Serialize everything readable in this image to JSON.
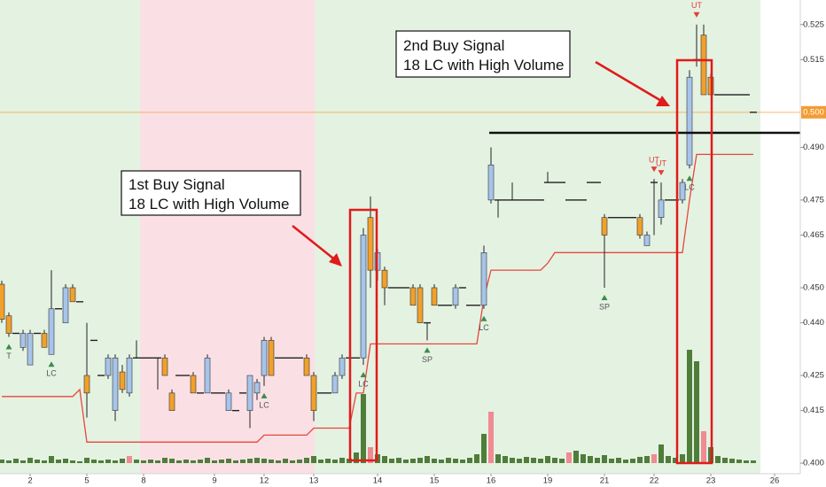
{
  "chart_data": {
    "type": "candlestick",
    "up_color": "#a7c4ea",
    "down_color": "#f0a02c",
    "wick_color": "#222222",
    "ylim": [
      0.397,
      0.532
    ],
    "yticks": [
      {
        "value": 0.4,
        "label": "0.400"
      },
      0.415,
      0.425,
      {
        "value": 0.44,
        "label": "0.440"
      },
      {
        "value": 0.45,
        "label": "0.450"
      },
      0.465,
      0.475,
      {
        "value": 0.49,
        "label": "0.490"
      },
      0.515,
      0.525
    ],
    "last_price": {
      "value": 0.5,
      "label": "0.500",
      "color": "#f39c34"
    },
    "categories": [
      null,
      null,
      null,
      null,
      "2",
      null,
      null,
      null,
      null,
      null,
      null,
      null,
      "5",
      null,
      null,
      null,
      null,
      null,
      null,
      null,
      "8",
      null,
      null,
      null,
      null,
      null,
      null,
      null,
      null,
      null,
      "9",
      null,
      null,
      null,
      null,
      null,
      null,
      "12",
      null,
      null,
      null,
      null,
      null,
      null,
      "13",
      null,
      null,
      null,
      null,
      null,
      null,
      null,
      null,
      "14",
      null,
      null,
      null,
      null,
      null,
      null,
      null,
      "15",
      null,
      null,
      null,
      null,
      null,
      null,
      null,
      "16",
      null,
      null,
      null,
      null,
      null,
      null,
      null,
      "19",
      null,
      null,
      null,
      null,
      null,
      null,
      null,
      "21",
      null,
      null,
      null,
      null,
      null,
      null,
      "22",
      null,
      null,
      null,
      null,
      null,
      null,
      null,
      "23",
      null,
      null,
      null,
      null,
      null,
      null,
      null,
      null,
      "26"
    ],
    "ohlc": [
      [
        0.451,
        0.452,
        0.44,
        0.441
      ],
      [
        0.442,
        0.443,
        0.436,
        0.437
      ],
      [
        0.437,
        0.437,
        0.437,
        0.437
      ],
      [
        0.433,
        0.438,
        0.432,
        0.437
      ],
      [
        0.428,
        0.438,
        0.428,
        0.437
      ],
      [
        0.437,
        0.437,
        0.437,
        0.437
      ],
      [
        0.437,
        0.438,
        0.433,
        0.433
      ],
      [
        0.431,
        0.455,
        0.431,
        0.444
      ],
      [
        0.444,
        0.444,
        0.444,
        0.444
      ],
      [
        0.44,
        0.451,
        0.44,
        0.45
      ],
      [
        0.45,
        0.451,
        0.446,
        0.446
      ],
      [
        0.446,
        0.446,
        0.446,
        0.446
      ],
      [
        0.425,
        0.44,
        0.413,
        0.42
      ],
      [
        0.435,
        0.435,
        0.435,
        0.435
      ],
      [
        0.425,
        0.425,
        0.425,
        0.425
      ],
      [
        0.425,
        0.431,
        0.424,
        0.43
      ],
      [
        0.415,
        0.431,
        0.412,
        0.43
      ],
      [
        0.426,
        0.428,
        0.42,
        0.421
      ],
      [
        0.42,
        0.431,
        0.419,
        0.43
      ],
      [
        0.43,
        0.435,
        0.43,
        0.43
      ],
      [
        0.43,
        0.43,
        0.43,
        0.43
      ],
      [
        0.43,
        0.43,
        0.43,
        0.43
      ],
      [
        0.43,
        0.43,
        0.421,
        0.43
      ],
      [
        0.43,
        0.431,
        0.425,
        0.425
      ],
      [
        0.42,
        0.421,
        0.415,
        0.415
      ],
      [
        0.425,
        0.425,
        0.425,
        0.425
      ],
      [
        0.425,
        0.425,
        0.425,
        0.425
      ],
      [
        0.425,
        0.426,
        0.42,
        0.42
      ],
      [
        0.42,
        0.42,
        0.42,
        0.42
      ],
      [
        0.42,
        0.431,
        0.42,
        0.43
      ],
      [
        0.42,
        0.42,
        0.42,
        0.42
      ],
      [
        0.42,
        0.42,
        0.42,
        0.42
      ],
      [
        0.415,
        0.421,
        0.415,
        0.42
      ],
      [
        0.415,
        0.415,
        0.415,
        0.415
      ],
      [
        0.42,
        0.42,
        0.42,
        0.42
      ],
      [
        0.415,
        0.425,
        0.41,
        0.425
      ],
      [
        0.42,
        0.424,
        0.418,
        0.423
      ],
      [
        0.425,
        0.436,
        0.422,
        0.435
      ],
      [
        0.435,
        0.436,
        0.425,
        0.425
      ],
      [
        0.43,
        0.43,
        0.43,
        0.43
      ],
      [
        0.43,
        0.43,
        0.43,
        0.43
      ],
      [
        0.43,
        0.43,
        0.43,
        0.43
      ],
      [
        0.43,
        0.43,
        0.43,
        0.43
      ],
      [
        0.43,
        0.431,
        0.425,
        0.425
      ],
      [
        0.425,
        0.426,
        0.412,
        0.415
      ],
      [
        0.42,
        0.42,
        0.42,
        0.42
      ],
      [
        0.42,
        0.42,
        0.42,
        0.42
      ],
      [
        0.42,
        0.426,
        0.42,
        0.425
      ],
      [
        0.425,
        0.431,
        0.424,
        0.43
      ],
      [
        0.43,
        0.43,
        0.43,
        0.43
      ],
      [
        0.43,
        0.43,
        0.43,
        0.43
      ],
      [
        0.43,
        0.467,
        0.428,
        0.465
      ],
      [
        0.47,
        0.476,
        0.45,
        0.455
      ],
      [
        0.455,
        0.461,
        0.452,
        0.46
      ],
      [
        0.455,
        0.456,
        0.445,
        0.45
      ],
      [
        0.45,
        0.45,
        0.45,
        0.45
      ],
      [
        0.45,
        0.45,
        0.45,
        0.45
      ],
      [
        0.45,
        0.45,
        0.45,
        0.45
      ],
      [
        0.45,
        0.451,
        0.445,
        0.445
      ],
      [
        0.45,
        0.451,
        0.44,
        0.44
      ],
      [
        0.44,
        0.44,
        0.435,
        0.44
      ],
      [
        0.45,
        0.451,
        0.445,
        0.445
      ],
      [
        0.445,
        0.445,
        0.445,
        0.445
      ],
      [
        0.445,
        0.445,
        0.445,
        0.445
      ],
      [
        0.445,
        0.451,
        0.444,
        0.45
      ],
      [
        0.45,
        0.45,
        0.45,
        0.45
      ],
      [
        0.445,
        0.445,
        0.445,
        0.445
      ],
      [
        0.445,
        0.445,
        0.445,
        0.445
      ],
      [
        0.445,
        0.462,
        0.444,
        0.46
      ],
      [
        0.475,
        0.49,
        0.474,
        0.485
      ],
      [
        0.475,
        0.475,
        0.47,
        0.475
      ],
      [
        0.475,
        0.475,
        0.475,
        0.475
      ],
      [
        0.475,
        0.48,
        0.475,
        0.475
      ],
      [
        0.475,
        0.475,
        0.475,
        0.475
      ],
      [
        0.475,
        0.475,
        0.475,
        0.475
      ],
      [
        0.475,
        0.475,
        0.475,
        0.475
      ],
      [
        0.475,
        0.475,
        0.475,
        0.475
      ],
      [
        0.48,
        0.483,
        0.48,
        0.48
      ],
      [
        0.48,
        0.48,
        0.48,
        0.48
      ],
      [
        0.48,
        0.48,
        0.48,
        0.48
      ],
      [
        0.475,
        0.475,
        0.475,
        0.475
      ],
      [
        0.475,
        0.475,
        0.475,
        0.475
      ],
      [
        0.475,
        0.475,
        0.475,
        0.475
      ],
      [
        0.48,
        0.48,
        0.48,
        0.48
      ],
      [
        0.48,
        0.48,
        0.48,
        0.48
      ],
      [
        0.47,
        0.471,
        0.45,
        0.465
      ],
      [
        0.47,
        0.47,
        0.47,
        0.47
      ],
      [
        0.47,
        0.47,
        0.47,
        0.47
      ],
      [
        0.47,
        0.47,
        0.47,
        0.47
      ],
      [
        0.47,
        0.47,
        0.47,
        0.47
      ],
      [
        0.47,
        0.471,
        0.464,
        0.465
      ],
      [
        0.462,
        0.466,
        0.462,
        0.465
      ],
      [
        0.48,
        0.481,
        0.465,
        0.48
      ],
      [
        0.47,
        0.48,
        0.468,
        0.475
      ],
      [
        0.475,
        0.475,
        0.475,
        0.475
      ],
      [
        0.475,
        0.475,
        0.475,
        0.475
      ],
      [
        0.475,
        0.481,
        0.474,
        0.48
      ],
      [
        0.485,
        0.512,
        0.484,
        0.51
      ],
      [
        0.515,
        0.525,
        0.513,
        0.515
      ],
      [
        0.522,
        0.525,
        0.505,
        0.505
      ],
      [
        0.51,
        0.511,
        0.505,
        0.505
      ],
      [
        0.505,
        0.505,
        0.505,
        0.505
      ],
      [
        0.505,
        0.505,
        0.505,
        0.505
      ],
      [
        0.505,
        0.505,
        0.505,
        0.505
      ],
      [
        0.505,
        0.505,
        0.505,
        0.505
      ],
      [
        0.505,
        0.505,
        0.505,
        0.505
      ],
      [
        0.5,
        0.5,
        0.5,
        0.5
      ],
      null,
      null,
      null
    ],
    "volume": [
      4,
      3,
      5,
      3,
      6,
      4,
      3,
      8,
      4,
      5,
      3,
      2,
      6,
      4,
      3,
      4,
      3,
      5,
      8,
      4,
      3,
      4,
      3,
      6,
      5,
      3,
      4,
      3,
      4,
      6,
      3,
      4,
      5,
      3,
      4,
      5,
      6,
      5,
      4,
      3,
      5,
      3,
      4,
      6,
      8,
      4,
      5,
      4,
      6,
      5,
      12,
      78,
      18,
      10,
      8,
      5,
      6,
      4,
      5,
      6,
      8,
      5,
      4,
      6,
      5,
      4,
      6,
      10,
      33,
      58,
      10,
      8,
      6,
      5,
      7,
      6,
      5,
      8,
      6,
      5,
      12,
      14,
      10,
      8,
      6,
      9,
      5,
      6,
      4,
      5,
      7,
      8,
      10,
      21,
      8,
      6,
      10,
      128,
      115,
      36,
      18,
      8,
      6,
      5,
      4,
      3,
      3,
      null,
      null,
      null
    ],
    "volume_colors": [
      "#4f7d3a",
      "#4f7d3a",
      "#4f7d3a",
      "#4f7d3a",
      "#4f7d3a",
      "#4f7d3a",
      "#4f7d3a",
      "#4f7d3a",
      "#4f7d3a",
      "#4f7d3a",
      "#4f7d3a",
      "#4f7d3a",
      "#4f7d3a",
      "#4f7d3a",
      "#4f7d3a",
      "#4f7d3a",
      "#4f7d3a",
      "#4f7d3a",
      "#f08a93",
      "#4f7d3a",
      "#4f7d3a",
      "#4f7d3a",
      "#4f7d3a",
      "#4f7d3a",
      "#4f7d3a",
      "#4f7d3a",
      "#4f7d3a",
      "#4f7d3a",
      "#4f7d3a",
      "#4f7d3a",
      "#4f7d3a",
      "#4f7d3a",
      "#4f7d3a",
      "#4f7d3a",
      "#4f7d3a",
      "#4f7d3a",
      "#4f7d3a",
      "#4f7d3a",
      "#4f7d3a",
      "#4f7d3a",
      "#4f7d3a",
      "#4f7d3a",
      "#4f7d3a",
      "#4f7d3a",
      "#4f7d3a",
      "#4f7d3a",
      "#4f7d3a",
      "#4f7d3a",
      "#4f7d3a",
      "#4f7d3a",
      "#4f7d3a",
      "#4f7d3a",
      "#f08a93",
      "#4f7d3a",
      "#4f7d3a",
      "#4f7d3a",
      "#4f7d3a",
      "#4f7d3a",
      "#4f7d3a",
      "#4f7d3a",
      "#4f7d3a",
      "#4f7d3a",
      "#4f7d3a",
      "#4f7d3a",
      "#4f7d3a",
      "#4f7d3a",
      "#4f7d3a",
      "#4f7d3a",
      "#4f7d3a",
      "#f08a93",
      "#4f7d3a",
      "#4f7d3a",
      "#4f7d3a",
      "#4f7d3a",
      "#4f7d3a",
      "#4f7d3a",
      "#4f7d3a",
      "#4f7d3a",
      "#4f7d3a",
      "#4f7d3a",
      "#f08a93",
      "#4f7d3a",
      "#4f7d3a",
      "#4f7d3a",
      "#4f7d3a",
      "#4f7d3a",
      "#4f7d3a",
      "#4f7d3a",
      "#4f7d3a",
      "#4f7d3a",
      "#4f7d3a",
      "#4f7d3a",
      "#f08a93",
      "#4f7d3a",
      "#4f7d3a",
      "#4f7d3a",
      "#4f7d3a",
      "#4f7d3a",
      "#4f7d3a",
      "#f08a93",
      "#4f7d3a",
      "#4f7d3a",
      "#4f7d3a",
      "#4f7d3a",
      "#4f7d3a",
      "#4f7d3a",
      "#4f7d3a",
      "#4f7d3a",
      "#4f7d3a",
      "#4f7d3a"
    ],
    "stop_line": {
      "color": "#e8463c",
      "values": [
        0.419,
        0.419,
        0.419,
        0.419,
        0.419,
        0.419,
        0.419,
        0.419,
        0.419,
        0.419,
        0.419,
        0.421,
        0.406,
        0.406,
        0.406,
        0.406,
        0.406,
        0.406,
        0.406,
        0.406,
        0.406,
        0.406,
        0.406,
        0.406,
        0.406,
        0.406,
        0.406,
        0.406,
        0.406,
        0.406,
        0.406,
        0.406,
        0.406,
        0.406,
        0.406,
        0.406,
        0.406,
        0.408,
        0.408,
        0.408,
        0.408,
        0.408,
        0.408,
        0.408,
        0.41,
        0.41,
        0.41,
        0.41,
        0.41,
        0.41,
        0.42,
        0.42,
        0.434,
        0.434,
        0.434,
        0.434,
        0.434,
        0.434,
        0.434,
        0.434,
        0.434,
        0.434,
        0.434,
        0.434,
        0.434,
        0.434,
        0.434,
        0.434,
        0.447,
        0.455,
        0.455,
        0.455,
        0.455,
        0.455,
        0.455,
        0.455,
        0.455,
        0.457,
        0.46,
        0.46,
        0.46,
        0.46,
        0.46,
        0.46,
        0.46,
        0.46,
        0.46,
        0.46,
        0.46,
        0.46,
        0.46,
        0.46,
        0.46,
        0.46,
        0.46,
        0.46,
        0.46,
        0.475,
        0.488,
        0.488,
        0.488,
        0.488,
        0.488,
        0.488,
        0.488,
        0.488,
        0.488,
        null,
        null,
        null
      ]
    },
    "markers": [
      {
        "index": 1,
        "label": "T",
        "side": "below"
      },
      {
        "index": 7,
        "label": "LC",
        "side": "below"
      },
      {
        "index": 37,
        "label": "LC",
        "side": "below"
      },
      {
        "index": 51,
        "label": "LC",
        "side": "below"
      },
      {
        "index": 60,
        "label": "SP",
        "side": "below"
      },
      {
        "index": 68,
        "label": "LC",
        "side": "below"
      },
      {
        "index": 85,
        "label": "SP",
        "side": "below"
      },
      {
        "index": 92,
        "label": "UT",
        "side": "above"
      },
      {
        "index": 93,
        "label": "UT",
        "side": "above"
      },
      {
        "index": 97,
        "label": "LC",
        "side": "below"
      },
      {
        "index": 98,
        "label": "UT",
        "side": "above"
      }
    ],
    "annotations": [
      {
        "lines": [
          "1st Buy Signal",
          "18 LC with High Volume"
        ]
      },
      {
        "lines": [
          "2nd Buy Signal",
          "18 LC with High Volume"
        ]
      }
    ]
  }
}
